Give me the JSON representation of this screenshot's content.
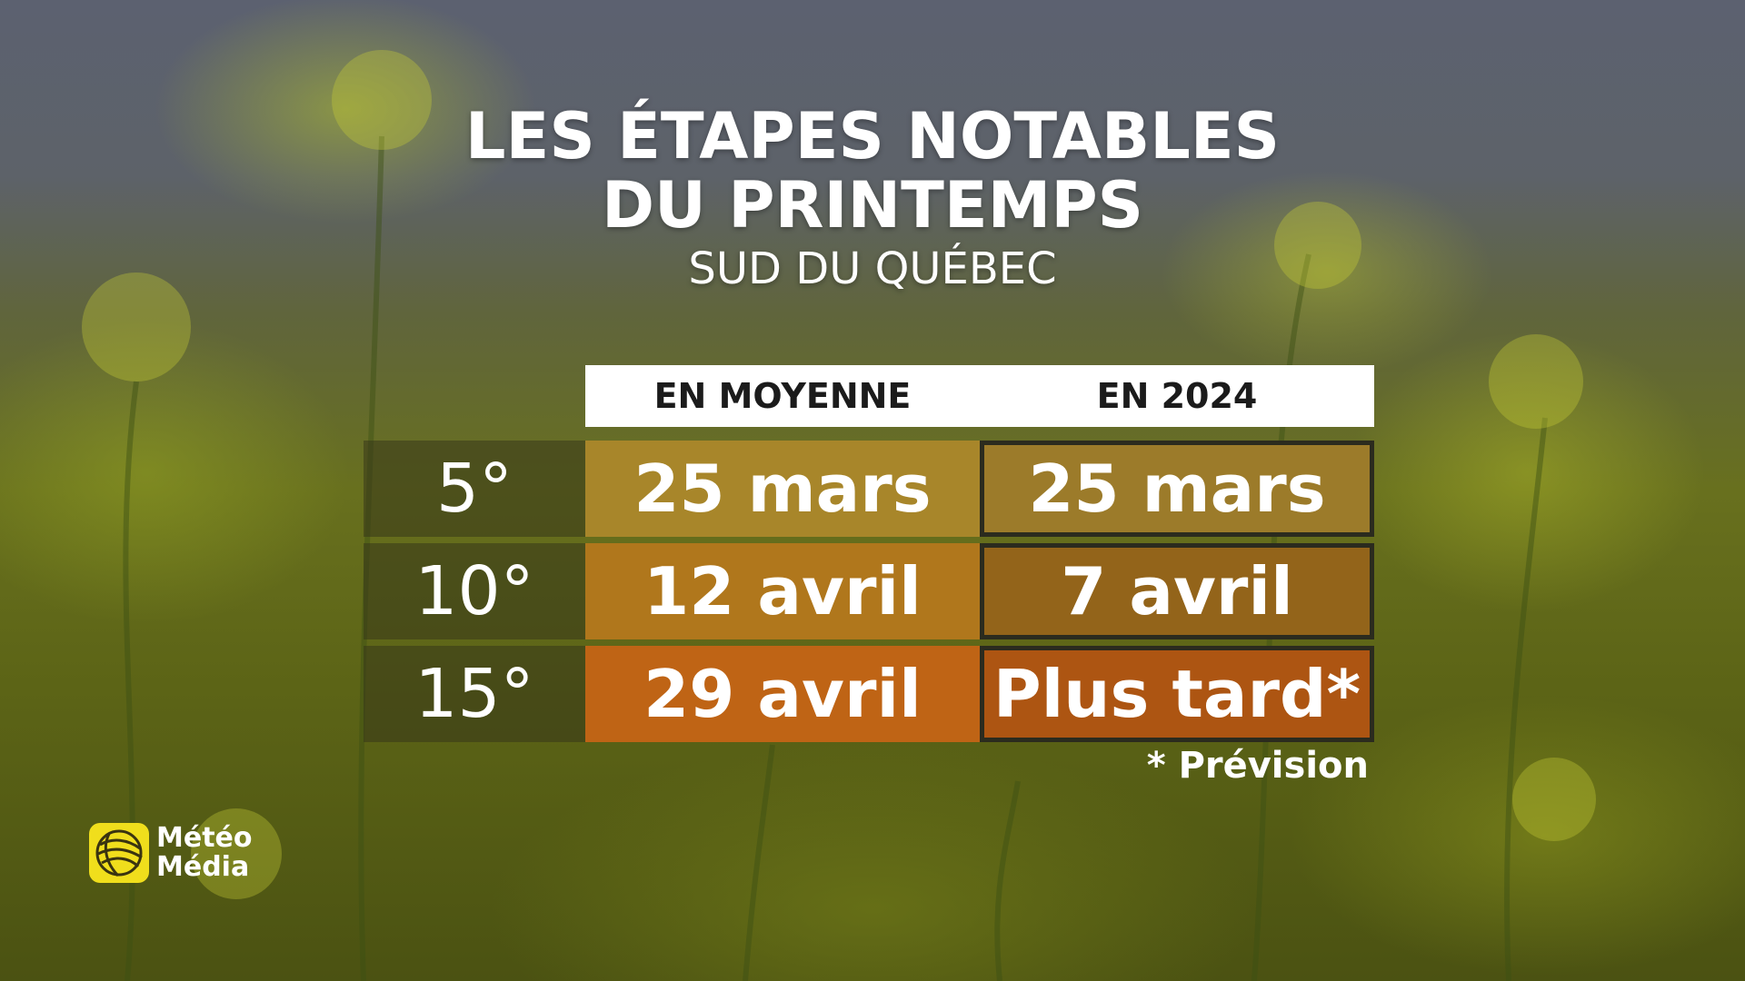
{
  "title": {
    "line1": "LES ÉTAPES NOTABLES",
    "line2": "DU PRINTEMPS",
    "subtitle": "SUD DU QUÉBEC"
  },
  "table": {
    "columns": [
      "EN MOYENNE",
      "EN 2024"
    ],
    "rows": [
      {
        "label": "5°",
        "average": "25 mars",
        "y2024": "25 mars",
        "avg_color": "#a8862a",
        "y24_color": "#9c7b2a"
      },
      {
        "label": "10°",
        "average": "12 avril",
        "y2024": "7 avril",
        "avg_color": "#b0771c",
        "y24_color": "#93641a"
      },
      {
        "label": "15°",
        "average": "29 avril",
        "y2024": "Plus tard*",
        "avg_color": "#bf6415",
        "y24_color": "#ad5512"
      }
    ]
  },
  "footnote": "* Prévision",
  "logo": {
    "icon": "globe-logo-icon",
    "line1": "Météo",
    "line2": "Média",
    "color": "#f0de1c"
  }
}
